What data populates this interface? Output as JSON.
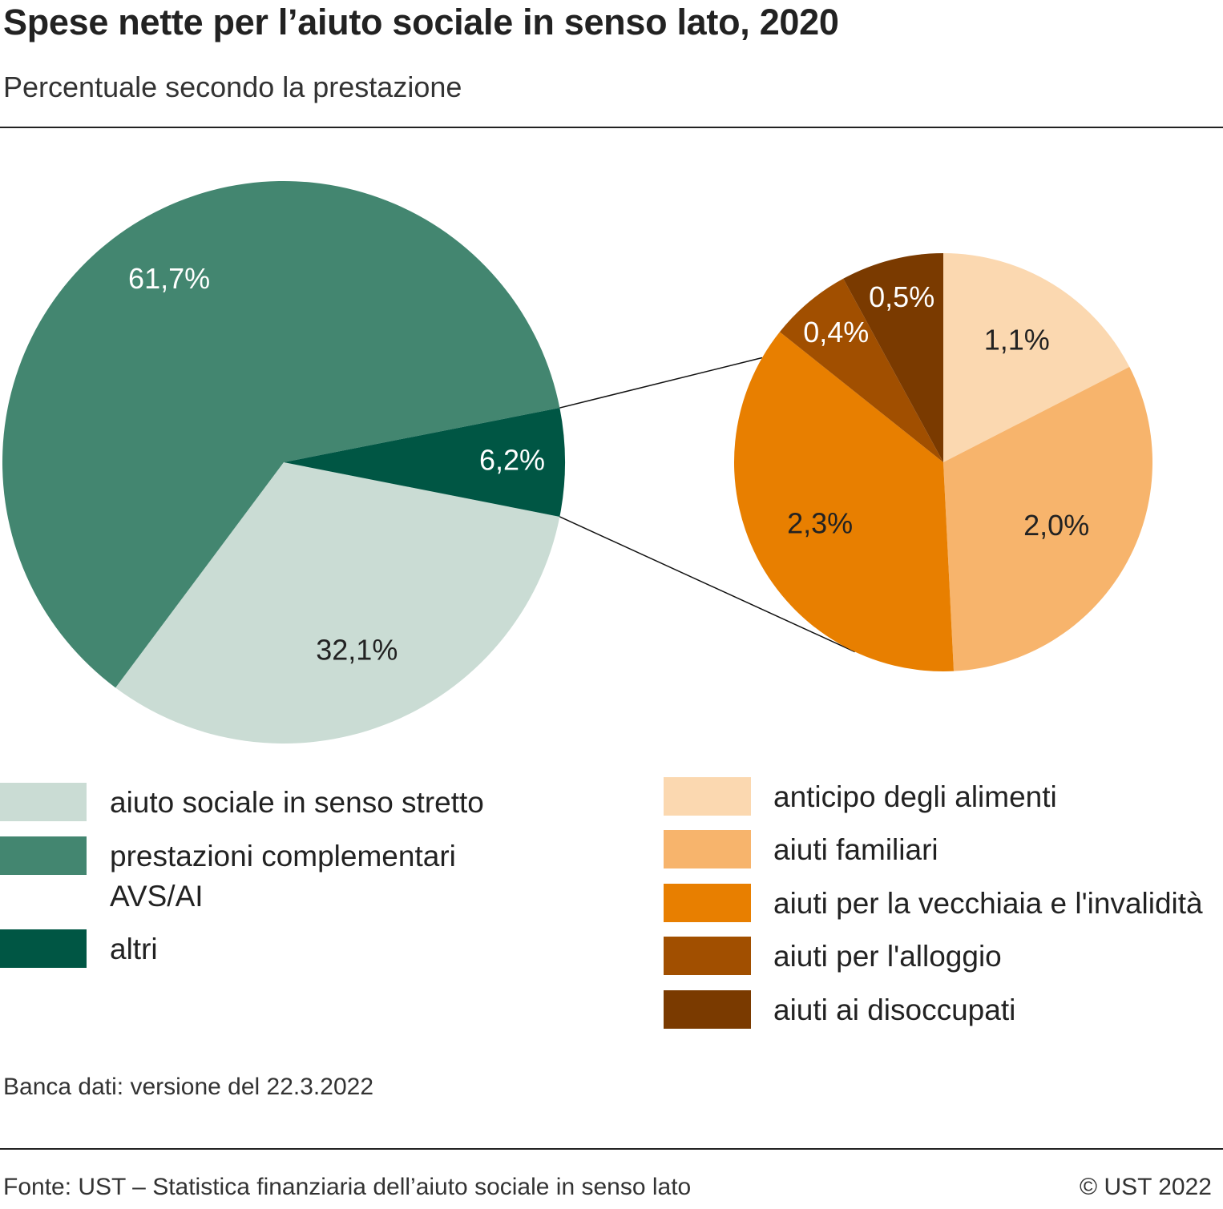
{
  "header": {
    "title": "Spese nette per l’aiuto sociale in senso lato, 2020",
    "subtitle": "Percentuale secondo la prestazione"
  },
  "chart_data": [
    {
      "type": "pie",
      "title": "",
      "slices": [
        {
          "name": "aiuto sociale in senso stretto",
          "value": 32.1,
          "label": "32,1%",
          "color": "#cadcd4"
        },
        {
          "name": "prestazioni complementari AVS/AI",
          "value": 61.7,
          "label": "61,7%",
          "color": "#438670"
        },
        {
          "name": "altri",
          "value": 6.2,
          "label": "6,2%",
          "color": "#005644"
        }
      ]
    },
    {
      "type": "pie",
      "title": "",
      "breakdown_of": "altri",
      "slices": [
        {
          "name": "anticipo degli alimenti",
          "value": 1.1,
          "label": "1,1%",
          "color": "#fbd8b0"
        },
        {
          "name": "aiuti familiari",
          "value": 2.0,
          "label": "2,0%",
          "color": "#f7b46c"
        },
        {
          "name": "aiuti per la vecchiaia e l'invalidità",
          "value": 2.3,
          "label": "2,3%",
          "color": "#e87f00"
        },
        {
          "name": "aiuti per l'alloggio",
          "value": 0.4,
          "label": "0,4%",
          "color": "#a14f00"
        },
        {
          "name": "aiuti ai disoccupati",
          "value": 0.5,
          "label": "0,5%",
          "color": "#7a3a00"
        }
      ]
    }
  ],
  "legend_left": [
    {
      "label": "aiuto sociale in senso stretto",
      "color": "#cadcd4"
    },
    {
      "label": "prestazioni complementari",
      "label2": "AVS/AI",
      "color": "#438670"
    },
    {
      "label": "altri",
      "color": "#005644"
    }
  ],
  "legend_right": [
    {
      "label": "anticipo degli alimenti",
      "color": "#fbd8b0"
    },
    {
      "label": "aiuti familiari",
      "color": "#f7b46c"
    },
    {
      "label": "aiuti per la vecchiaia e l'invalidità",
      "color": "#e87f00"
    },
    {
      "label": "aiuti per l'alloggio",
      "color": "#a14f00"
    },
    {
      "label": "aiuti ai disoccupati",
      "color": "#7a3a00"
    }
  ],
  "footer": {
    "note": "Banca dati: versione del 22.3.2022",
    "source": "Fonte: UST – Statistica finanziaria dell’aiuto sociale in senso lato",
    "copyright": "© UST 2022"
  }
}
